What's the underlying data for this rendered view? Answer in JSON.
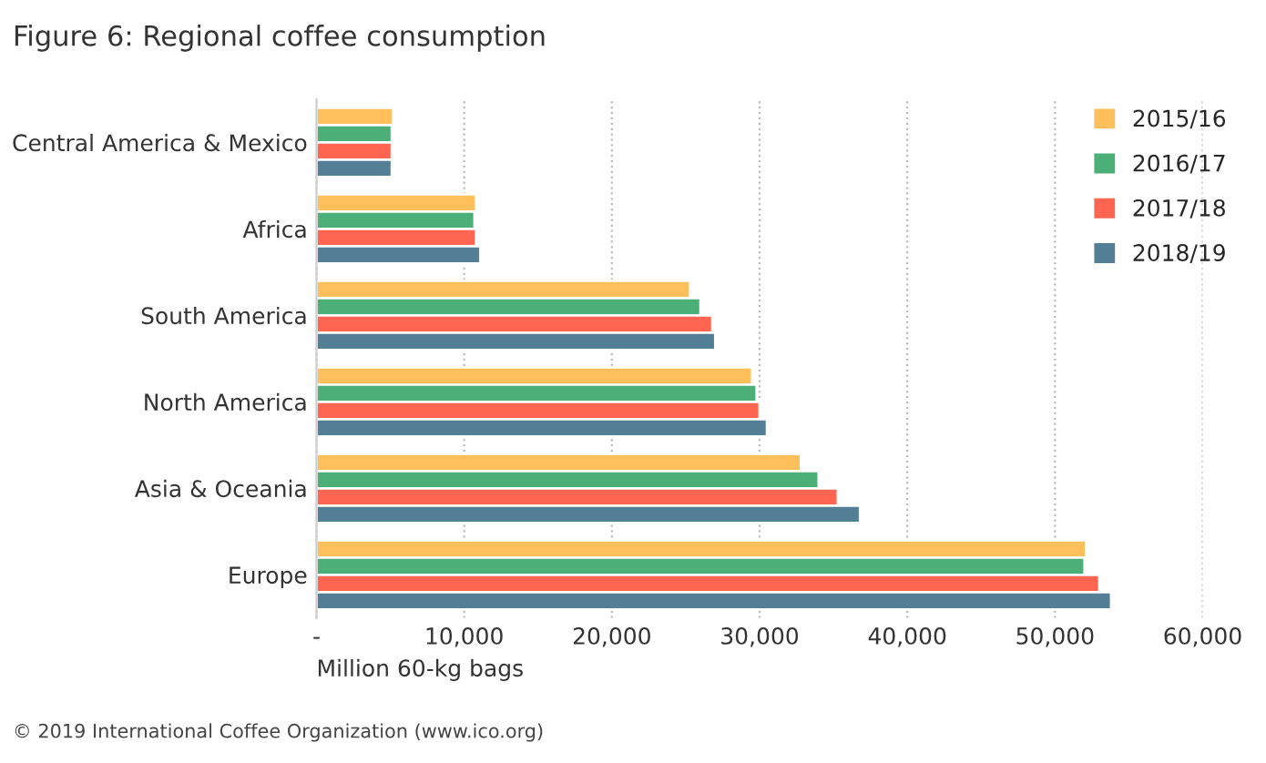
{
  "chart_data": {
    "type": "bar",
    "orientation": "horizontal",
    "title": "Figure 6: Regional coffee consumption",
    "xlabel": "Million 60-kg bags",
    "categories": [
      "Central America & Mexico",
      "Africa",
      "South America",
      "North America",
      "Asia & Oceania",
      "Europe"
    ],
    "series": [
      {
        "name": "2015/16",
        "color": "#ffbf5a",
        "values": [
          5200,
          10800,
          25300,
          29500,
          32800,
          52100
        ]
      },
      {
        "name": "2016/17",
        "color": "#4daf78",
        "values": [
          5100,
          10700,
          26000,
          29800,
          34000,
          52000
        ]
      },
      {
        "name": "2017/18",
        "color": "#ff6550",
        "values": [
          5100,
          10800,
          26800,
          30000,
          35300,
          53000
        ]
      },
      {
        "name": "2018/19",
        "color": "#527f96",
        "values": [
          5100,
          11100,
          27000,
          30500,
          36800,
          53800
        ]
      }
    ],
    "xlim": [
      0,
      60000
    ],
    "xticks": [
      {
        "value": 0,
        "label": "-"
      },
      {
        "value": 10000,
        "label": "10,000"
      },
      {
        "value": 20000,
        "label": "20,000"
      },
      {
        "value": 30000,
        "label": "30,000"
      },
      {
        "value": 40000,
        "label": "40,000"
      },
      {
        "value": 50000,
        "label": "50,000"
      },
      {
        "value": 60000,
        "label": "60,000"
      }
    ],
    "grid": "x",
    "legend": "top right",
    "annotations": [
      "© 2019 International Coffee Organization (www.ico.org)"
    ]
  }
}
